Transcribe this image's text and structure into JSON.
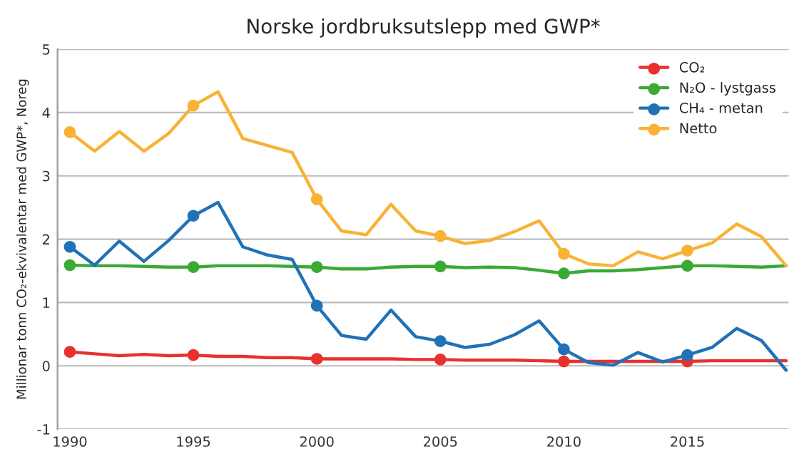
{
  "chart_data": {
    "type": "line",
    "title": "Norske jordbruksutslepp med GWP*",
    "ylabel": "Millionar tonn CO₂-ekvivalentar med GWP*, Noreg",
    "x": [
      1990,
      1991,
      1992,
      1993,
      1994,
      1995,
      1996,
      1997,
      1998,
      1999,
      2000,
      2001,
      2002,
      2003,
      2004,
      2005,
      2006,
      2007,
      2008,
      2009,
      2010,
      2011,
      2012,
      2013,
      2014,
      2015,
      2016,
      2017,
      2018,
      2019
    ],
    "series": [
      {
        "name": "CO₂",
        "marker": "none",
        "color": "#e8312f",
        "values": [
          0.22,
          0.19,
          0.16,
          0.18,
          0.16,
          0.17,
          0.15,
          0.15,
          0.13,
          0.13,
          0.11,
          0.11,
          0.11,
          0.11,
          0.1,
          0.1,
          0.09,
          0.09,
          0.09,
          0.08,
          0.07,
          0.07,
          0.07,
          0.07,
          0.07,
          0.07,
          0.08,
          0.08,
          0.08,
          0.08
        ]
      },
      {
        "name": "N₂O - lystgass",
        "marker": "none",
        "color": "#3aaa35",
        "values": [
          1.59,
          1.58,
          1.58,
          1.57,
          1.56,
          1.56,
          1.58,
          1.58,
          1.58,
          1.57,
          1.56,
          1.53,
          1.53,
          1.56,
          1.57,
          1.57,
          1.55,
          1.56,
          1.55,
          1.51,
          1.46,
          1.5,
          1.5,
          1.52,
          1.55,
          1.58,
          1.58,
          1.57,
          1.56,
          1.58
        ]
      },
      {
        "name": "CH₄ - metan",
        "marker": "none",
        "color": "#1f72b8",
        "values": [
          1.88,
          1.59,
          1.97,
          1.65,
          1.98,
          2.37,
          2.58,
          1.88,
          1.75,
          1.68,
          0.95,
          0.48,
          0.42,
          0.88,
          0.46,
          0.39,
          0.29,
          0.34,
          0.49,
          0.71,
          0.26,
          0.05,
          0.01,
          0.21,
          0.06,
          0.17,
          0.29,
          0.59,
          0.4,
          -0.07
        ]
      },
      {
        "name": "Netto",
        "marker": "none",
        "color": "#f9b233",
        "values": [
          3.69,
          3.39,
          3.7,
          3.39,
          3.67,
          4.11,
          4.33,
          3.59,
          3.48,
          3.37,
          2.63,
          2.13,
          2.07,
          2.55,
          2.13,
          2.05,
          1.93,
          1.98,
          2.12,
          2.29,
          1.77,
          1.61,
          1.58,
          1.8,
          1.69,
          1.82,
          1.94,
          2.24,
          2.04,
          1.58
        ]
      },
      {
        "type": "scatter",
        "marker": "circle",
        "color": "#e8312f",
        "x": [
          1990,
          1995,
          2000,
          2005,
          2010,
          2015
        ],
        "values": [
          0.22,
          0.17,
          0.11,
          0.1,
          0.07,
          0.07
        ]
      },
      {
        "type": "scatter",
        "marker": "circle",
        "color": "#3aaa35",
        "x": [
          1990,
          1995,
          2000,
          2005,
          2010,
          2015
        ],
        "values": [
          1.59,
          1.56,
          1.56,
          1.57,
          1.46,
          1.58
        ]
      },
      {
        "type": "scatter",
        "marker": "circle",
        "color": "#1f72b8",
        "x": [
          1990,
          1995,
          2000,
          2005,
          2010,
          2015
        ],
        "values": [
          1.88,
          2.37,
          0.95,
          0.39,
          0.26,
          0.17
        ]
      },
      {
        "type": "scatter",
        "marker": "circle",
        "color": "#f9b233",
        "x": [
          1990,
          1995,
          2000,
          2005,
          2010,
          2015
        ],
        "values": [
          3.69,
          4.11,
          2.63,
          2.05,
          1.77,
          1.82
        ]
      }
    ],
    "xlim": [
      1989.5,
      2019.1
    ],
    "ylim": [
      -1,
      5
    ],
    "xticks": [
      1990,
      1995,
      2000,
      2005,
      2010,
      2015
    ],
    "yticks": [
      -1,
      0,
      1,
      2,
      3,
      4,
      5
    ],
    "grid": "y",
    "legend": "top right",
    "line_style": "solid"
  }
}
